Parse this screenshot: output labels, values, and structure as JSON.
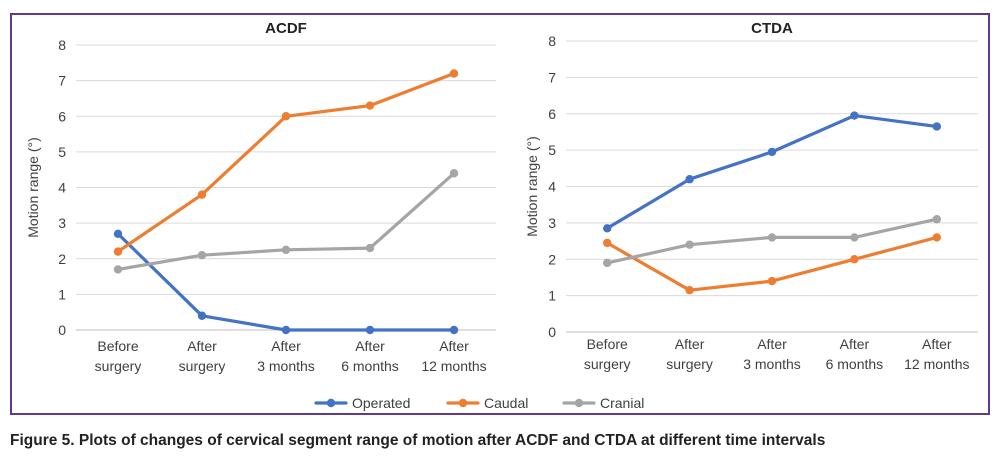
{
  "caption": "Figure 5. Plots of changes of cervical segment range of motion after ACDF and CTDA at different time intervals",
  "legend": [
    {
      "name": "Operated",
      "color": "#4472c4"
    },
    {
      "name": "Caudal",
      "color": "#ed7d31"
    },
    {
      "name": "Cranial",
      "color": "#a5a5a5"
    }
  ],
  "chart_data": [
    {
      "type": "line",
      "title": "ACDF",
      "ylabel": "Motion range (°)",
      "xlabel": "",
      "ylim": [
        0,
        8
      ],
      "yticks": [
        "0",
        "1",
        "2",
        "3",
        "4",
        "5",
        "6",
        "7",
        "8"
      ],
      "grid": true,
      "legend_placement": "bottom",
      "categories": [
        [
          "Before",
          "surgery"
        ],
        [
          "After",
          "surgery"
        ],
        [
          "After",
          "3 months"
        ],
        [
          "After",
          "6 months"
        ],
        [
          "After",
          "12 months"
        ]
      ],
      "series": [
        {
          "name": "Operated",
          "color": "#4472c4",
          "values": [
            2.7,
            0.4,
            0.0,
            0.0,
            0.0
          ]
        },
        {
          "name": "Caudal",
          "color": "#ed7d31",
          "values": [
            2.2,
            3.8,
            6.0,
            6.3,
            7.2
          ]
        },
        {
          "name": "Cranial",
          "color": "#a5a5a5",
          "values": [
            1.7,
            2.1,
            2.25,
            2.3,
            4.4
          ]
        }
      ]
    },
    {
      "type": "line",
      "title": "CTDA",
      "ylabel": "Motion range (°)",
      "xlabel": "",
      "ylim": [
        0,
        8
      ],
      "yticks": [
        "0",
        "1",
        "2",
        "3",
        "4",
        "5",
        "6",
        "7",
        "8"
      ],
      "grid": true,
      "legend_placement": "bottom",
      "categories": [
        [
          "Before",
          "surgery"
        ],
        [
          "After",
          "surgery"
        ],
        [
          "After",
          "3 months"
        ],
        [
          "After",
          "6 months"
        ],
        [
          "After",
          "12 months"
        ]
      ],
      "series": [
        {
          "name": "Operated",
          "color": "#4472c4",
          "values": [
            2.85,
            4.2,
            4.95,
            5.95,
            5.65
          ]
        },
        {
          "name": "Caudal",
          "color": "#ed7d31",
          "values": [
            2.45,
            1.15,
            1.4,
            2.0,
            2.6
          ]
        },
        {
          "name": "Cranial",
          "color": "#a5a5a5",
          "values": [
            1.9,
            2.4,
            2.6,
            2.6,
            3.1
          ]
        }
      ]
    }
  ]
}
